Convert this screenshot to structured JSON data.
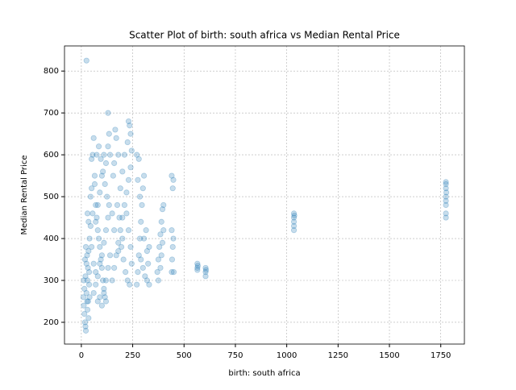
{
  "chart_data": {
    "type": "scatter",
    "title": "Scatter Plot of birth: south africa vs Median Rental Price",
    "x_label": "birth: south africa",
    "y_label": "Median Rental Price",
    "color": "#1f77b4",
    "grid": true,
    "xlim": [
      -82,
      1865
    ],
    "ylim": [
      148,
      860
    ],
    "xticks": [
      0,
      250,
      500,
      750,
      1000,
      1250,
      1500,
      1750
    ],
    "yticks": [
      200,
      300,
      400,
      500,
      600,
      700,
      800
    ],
    "series": [
      {
        "name": "Median Rental Price",
        "x": [
          25,
          10,
          12,
          15,
          18,
          20,
          22,
          25,
          28,
          30,
          32,
          35,
          38,
          15,
          20,
          25,
          30,
          35,
          40,
          12,
          18,
          22,
          28,
          33,
          38,
          40,
          35,
          30,
          45,
          50,
          55,
          60,
          50,
          65,
          70,
          75,
          80,
          85,
          90,
          95,
          100,
          105,
          110,
          115,
          120,
          60,
          70,
          80,
          90,
          100,
          110,
          120,
          130,
          135,
          125,
          115,
          105,
          95,
          85,
          75,
          65,
          55,
          45,
          50,
          60,
          70,
          80,
          90,
          100,
          110,
          120,
          130,
          140,
          140,
          130,
          135,
          130,
          120,
          110,
          100,
          90,
          80,
          70,
          150,
          160,
          170,
          180,
          190,
          200,
          210,
          220,
          230,
          240,
          245,
          240,
          235,
          230,
          225,
          210,
          200,
          190,
          180,
          170,
          165,
          160,
          155,
          175,
          185,
          195,
          205,
          215,
          225,
          235,
          245,
          240,
          230,
          220,
          200,
          180,
          160,
          150,
          270,
          275,
          280,
          285,
          290,
          295,
          300,
          305,
          275,
          280,
          270,
          285,
          290,
          300,
          310,
          320,
          325,
          330,
          315,
          305,
          320,
          330,
          370,
          375,
          380,
          385,
          390,
          395,
          400,
          375,
          385,
          390,
          395,
          400,
          440,
          442,
          445,
          448,
          440,
          445,
          440,
          448,
          450,
          565,
          565,
          565,
          567,
          605,
          605,
          605,
          607,
          1035,
          1035,
          1035,
          1035,
          1035,
          1037,
          1775,
          1775,
          1775,
          1775,
          1775,
          1775,
          1775,
          1775,
          1777
        ],
        "y": [
          825,
          260,
          240,
          220,
          200,
          190,
          180,
          270,
          250,
          300,
          330,
          370,
          290,
          280,
          310,
          340,
          230,
          210,
          260,
          300,
          350,
          380,
          360,
          250,
          320,
          400,
          440,
          460,
          500,
          520,
          600,
          640,
          590,
          550,
          480,
          450,
          420,
          400,
          380,
          350,
          330,
          300,
          280,
          260,
          250,
          270,
          290,
          310,
          340,
          360,
          390,
          420,
          450,
          480,
          500,
          530,
          560,
          590,
          620,
          600,
          530,
          460,
          430,
          380,
          340,
          320,
          250,
          260,
          240,
          270,
          300,
          330,
          360,
          600,
          620,
          650,
          700,
          580,
          600,
          550,
          510,
          480,
          440,
          300,
          330,
          360,
          390,
          420,
          450,
          480,
          510,
          540,
          570,
          610,
          650,
          670,
          680,
          630,
          600,
          560,
          520,
          600,
          640,
          660,
          580,
          550,
          480,
          450,
          380,
          350,
          320,
          300,
          290,
          340,
          380,
          420,
          460,
          400,
          370,
          420,
          460,
          290,
          320,
          360,
          400,
          440,
          480,
          520,
          550,
          540,
          590,
          600,
          500,
          350,
          330,
          310,
          300,
          340,
          380,
          420,
          400,
          370,
          290,
          320,
          350,
          380,
          410,
          440,
          470,
          480,
          300,
          330,
          360,
          390,
          420,
          320,
          350,
          380,
          400,
          420,
          520,
          550,
          540,
          320,
          325,
          330,
          340,
          335,
          310,
          320,
          330,
          325,
          420,
          430,
          440,
          450,
          460,
          455,
          450,
          460,
          480,
          490,
          500,
          520,
          530,
          535,
          510
        ]
      }
    ]
  }
}
